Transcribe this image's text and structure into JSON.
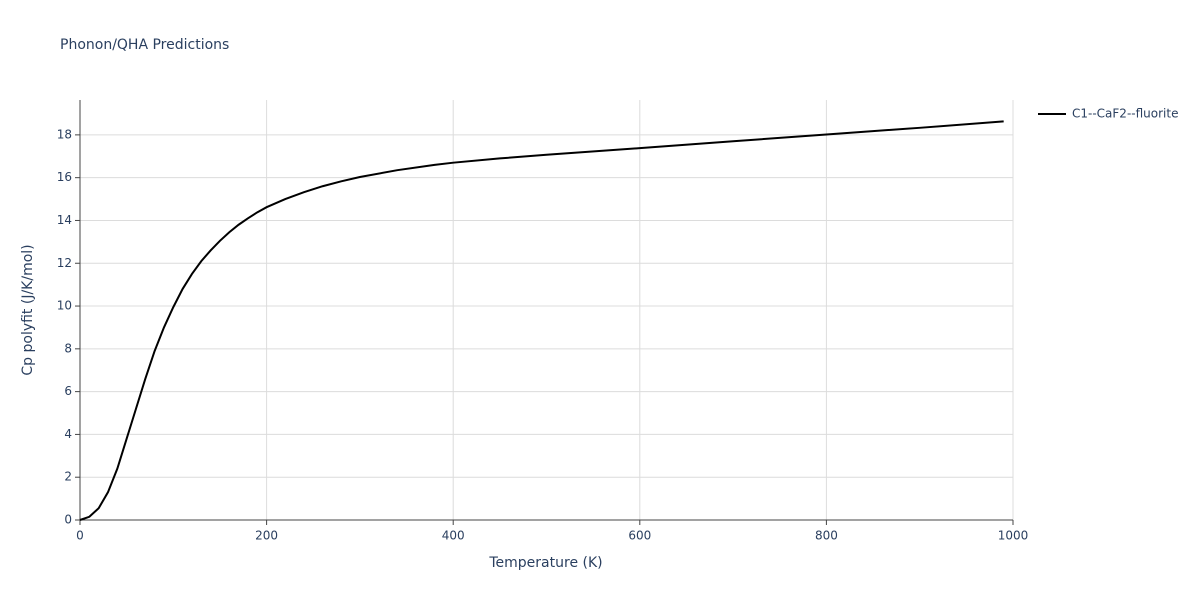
{
  "chart_data": {
    "type": "line",
    "title": "Phonon/QHA Predictions",
    "x_label": "Temperature (K)",
    "y_label": "Cp polyfit (J/K/mol)",
    "x": [
      0,
      10,
      20,
      30,
      40,
      50,
      60,
      70,
      80,
      90,
      100,
      110,
      120,
      130,
      140,
      150,
      160,
      170,
      180,
      190,
      200,
      220,
      240,
      260,
      280,
      300,
      340,
      380,
      400,
      450,
      500,
      600,
      700,
      800,
      900,
      990
    ],
    "series": [
      {
        "name": "C1--CaF2--fluorite",
        "color": "#000000",
        "values": [
          0,
          0.15,
          0.55,
          1.3,
          2.4,
          3.8,
          5.2,
          6.6,
          7.9,
          9.0,
          9.95,
          10.8,
          11.5,
          12.1,
          12.6,
          13.05,
          13.45,
          13.8,
          14.1,
          14.38,
          14.62,
          15.0,
          15.32,
          15.6,
          15.83,
          16.03,
          16.35,
          16.6,
          16.7,
          16.9,
          17.07,
          17.38,
          17.7,
          18.02,
          18.33,
          18.63
        ]
      }
    ],
    "xlim": [
      0,
      1000
    ],
    "ylim": [
      0,
      19.63
    ],
    "xticks": [
      0,
      200,
      400,
      600,
      800,
      1000
    ],
    "yticks": [
      0,
      2,
      4,
      6,
      8,
      10,
      12,
      14,
      16,
      18
    ],
    "grid": true,
    "legend": "right"
  }
}
